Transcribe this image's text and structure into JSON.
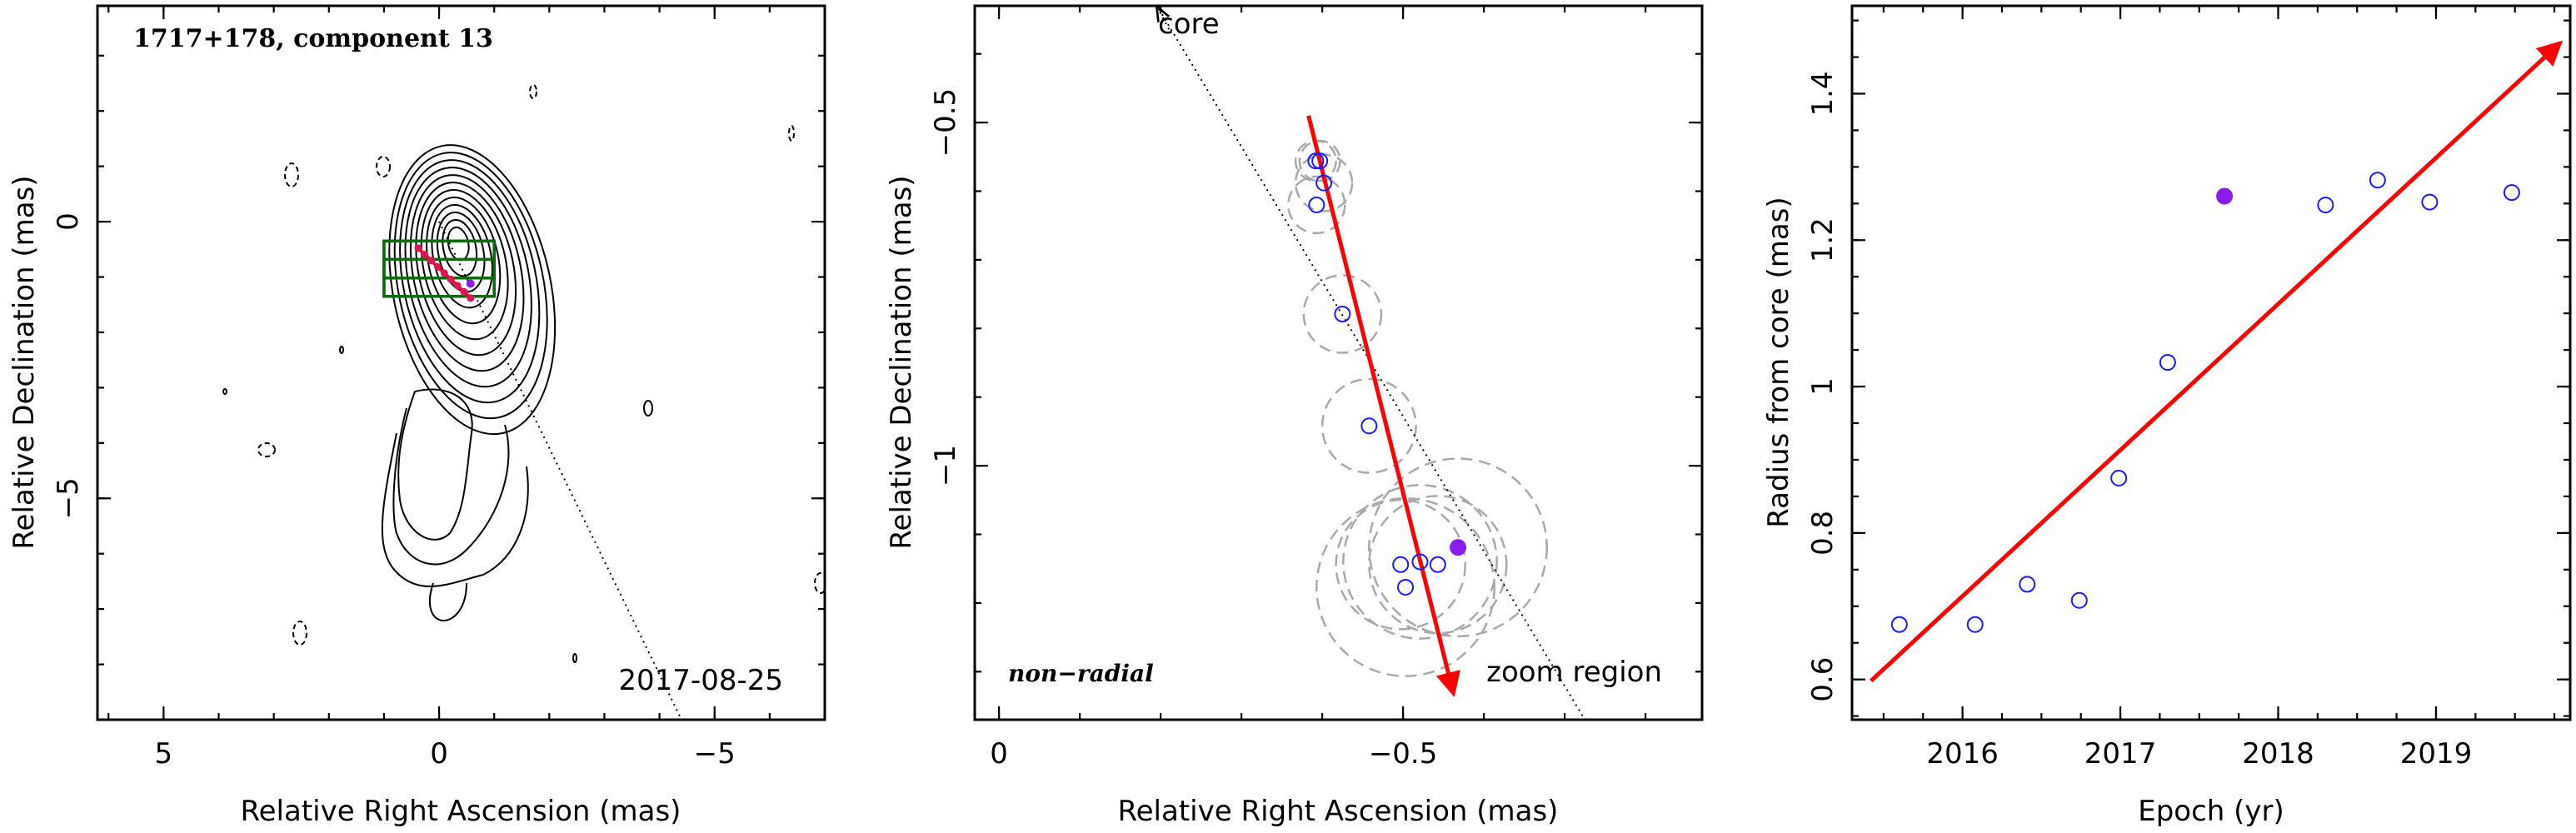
{
  "chart_data": [
    {
      "type": "contour",
      "title": "1717+178, component 13",
      "xlabel": "Relative Right Ascension (mas)",
      "ylabel": "Relative Declination (mas)",
      "xlim": [
        6.2,
        -7.0
      ],
      "ylim": [
        -9.0,
        3.9
      ],
      "xticks": [
        5,
        0,
        -5
      ],
      "yticks": [
        0,
        -5
      ],
      "x_tick_labels": [
        "5",
        "0",
        "−5"
      ],
      "y_tick_labels": [
        "0",
        "−5"
      ],
      "annotation": "2017-08-25",
      "zoom_box": {
        "x": [
          1.0,
          -1.0
        ],
        "y": [
          -0.35,
          -1.35
        ]
      },
      "core_direction_line": {
        "from": [
          0,
          0
        ],
        "to": [
          -4.4,
          -9.0
        ]
      },
      "component_track": {
        "from": [
          0.38,
          -0.48
        ],
        "to": [
          -0.57,
          -1.38
        ]
      },
      "selected_position": [
        -0.57,
        -1.12
      ]
    },
    {
      "type": "scatter",
      "xlabel": "Relative Right Ascension (mas)",
      "ylabel": "Relative Declination (mas)",
      "xlim": [
        0.03,
        -0.87
      ],
      "ylim": [
        -1.37,
        -0.33
      ],
      "xticks": [
        0,
        -0.5
      ],
      "yticks": [
        -0.5,
        -1
      ],
      "x_tick_labels": [
        "0",
        "−0.5"
      ],
      "y_tick_labels": [
        "−0.5",
        "−1"
      ],
      "annotations": [
        "core",
        "non−radial",
        "zoom region"
      ],
      "points": [
        {
          "x": -0.392,
          "y": -0.556,
          "r": 0.025
        },
        {
          "x": -0.397,
          "y": -0.556,
          "r": 0.025
        },
        {
          "x": -0.402,
          "y": -0.588,
          "r": 0.035
        },
        {
          "x": -0.393,
          "y": -0.62,
          "r": 0.035
        },
        {
          "x": -0.425,
          "y": -0.779,
          "r": 0.048
        },
        {
          "x": -0.458,
          "y": -0.942,
          "r": 0.058
        },
        {
          "x": -0.497,
          "y": -1.144,
          "r": 0.08
        },
        {
          "x": -0.521,
          "y": -1.14,
          "r": 0.095
        },
        {
          "x": -0.543,
          "y": -1.144,
          "r": 0.085
        },
        {
          "x": -0.503,
          "y": -1.177,
          "r": 0.11
        }
      ],
      "highlighted_point": {
        "x": -0.568,
        "y": -1.119,
        "r": 0.11
      },
      "track_arrow": {
        "from": [
          -0.383,
          -0.49
        ],
        "to": [
          -0.562,
          -1.33
        ]
      },
      "core_line": {
        "from": [
          -0.198,
          -0.335
        ],
        "to": [
          -0.725,
          -1.37
        ]
      }
    },
    {
      "type": "scatter",
      "xlabel": "Epoch (yr)",
      "ylabel": "Radius from core (mas)",
      "xlim": [
        2015.3,
        2019.85
      ],
      "ylim": [
        0.545,
        1.52
      ],
      "xticks": [
        2016,
        2017,
        2018,
        2019
      ],
      "yticks": [
        0.6,
        0.8,
        1,
        1.2,
        1.4
      ],
      "x_tick_labels": [
        "2016",
        "2017",
        "2018",
        "2019"
      ],
      "y_tick_labels": [
        "0.6",
        "0.8",
        "1",
        "1.2",
        "1.4"
      ],
      "points": [
        {
          "x": 2015.6,
          "y": 0.675
        },
        {
          "x": 2016.08,
          "y": 0.675
        },
        {
          "x": 2016.41,
          "y": 0.73
        },
        {
          "x": 2016.74,
          "y": 0.708
        },
        {
          "x": 2016.99,
          "y": 0.875
        },
        {
          "x": 2017.3,
          "y": 1.033
        },
        {
          "x": 2018.3,
          "y": 1.248
        },
        {
          "x": 2018.63,
          "y": 1.282
        },
        {
          "x": 2018.96,
          "y": 1.252
        },
        {
          "x": 2019.48,
          "y": 1.265
        }
      ],
      "highlighted_point": {
        "x": 2017.66,
        "y": 1.26
      },
      "fit_arrow": {
        "from": [
          2015.42,
          0.598
        ],
        "to": [
          2019.78,
          1.468
        ]
      }
    }
  ],
  "colors": {
    "open_marker": "#1a1aff",
    "highlight_marker": "#8a1cf0",
    "arrow": "#ff0000",
    "zoom_box": "#0a6b0a",
    "contour": "#000000",
    "circles": "#a8a8a8",
    "track_dots": "#e0145a"
  }
}
